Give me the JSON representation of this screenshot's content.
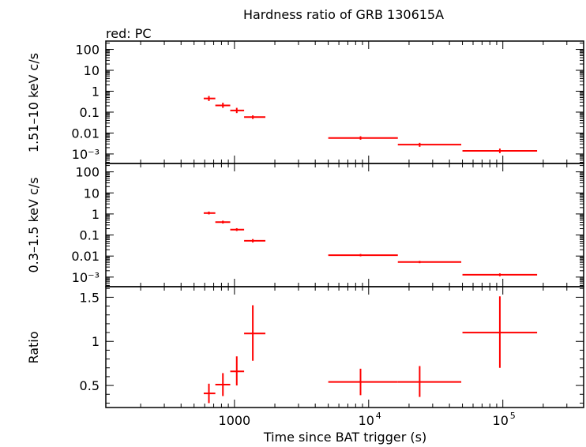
{
  "title": "Hardness ratio of GRB 130615A",
  "subtitle": "red: PC",
  "xlabel": "Time since BAT trigger (s)",
  "colors": {
    "data": "#ff0000",
    "axes": "#000000"
  },
  "chart_data": [
    {
      "type": "scatter",
      "name": "hard",
      "ylabel": "1.51–10 keV c/s",
      "x_scale": "log",
      "y_scale": "log",
      "xlim": [
        110,
        400000
      ],
      "ylim": [
        0.00035,
        250
      ],
      "yticks": [
        {
          "v": 100,
          "label": "100"
        },
        {
          "v": 10,
          "label": "10"
        },
        {
          "v": 1,
          "label": "1"
        },
        {
          "v": 0.1,
          "label": "0.1"
        },
        {
          "v": 0.01,
          "label": "0.01"
        },
        {
          "v": 0.001,
          "label": "10⁻³"
        }
      ],
      "points": [
        {
          "x": 645,
          "xlo": 590,
          "xhi": 720,
          "y": 0.45,
          "ylo": 0.34,
          "yhi": 0.59
        },
        {
          "x": 820,
          "xlo": 720,
          "xhi": 930,
          "y": 0.21,
          "ylo": 0.16,
          "yhi": 0.28
        },
        {
          "x": 1040,
          "xlo": 930,
          "xhi": 1180,
          "y": 0.12,
          "ylo": 0.09,
          "yhi": 0.16
        },
        {
          "x": 1370,
          "xlo": 1180,
          "xhi": 1700,
          "y": 0.058,
          "ylo": 0.047,
          "yhi": 0.07
        },
        {
          "x": 8700,
          "xlo": 5000,
          "xhi": 16500,
          "y": 0.0058,
          "ylo": 0.0048,
          "yhi": 0.007
        },
        {
          "x": 24000,
          "xlo": 16500,
          "xhi": 49000,
          "y": 0.0028,
          "ylo": 0.0022,
          "yhi": 0.0034
        },
        {
          "x": 95000,
          "xlo": 50000,
          "xhi": 180000,
          "y": 0.0014,
          "ylo": 0.0011,
          "yhi": 0.0018
        }
      ]
    },
    {
      "type": "scatter",
      "name": "soft",
      "ylabel": "0.3–1.5 keV c/s",
      "x_scale": "log",
      "y_scale": "log",
      "xlim": [
        110,
        400000
      ],
      "ylim": [
        0.00035,
        250
      ],
      "yticks": [
        {
          "v": 100,
          "label": "100"
        },
        {
          "v": 10,
          "label": "10"
        },
        {
          "v": 1,
          "label": "1"
        },
        {
          "v": 0.1,
          "label": "0.1"
        },
        {
          "v": 0.01,
          "label": "0.01"
        },
        {
          "v": 0.001,
          "label": "10⁻³"
        }
      ],
      "points": [
        {
          "x": 645,
          "xlo": 590,
          "xhi": 720,
          "y": 1.1,
          "ylo": 0.95,
          "yhi": 1.3
        },
        {
          "x": 820,
          "xlo": 720,
          "xhi": 930,
          "y": 0.41,
          "ylo": 0.35,
          "yhi": 0.48
        },
        {
          "x": 1040,
          "xlo": 930,
          "xhi": 1180,
          "y": 0.18,
          "ylo": 0.155,
          "yhi": 0.21
        },
        {
          "x": 1370,
          "xlo": 1180,
          "xhi": 1700,
          "y": 0.053,
          "ylo": 0.044,
          "yhi": 0.064
        },
        {
          "x": 8700,
          "xlo": 5000,
          "xhi": 16500,
          "y": 0.011,
          "ylo": 0.0097,
          "yhi": 0.0125
        },
        {
          "x": 24000,
          "xlo": 16500,
          "xhi": 49000,
          "y": 0.0052,
          "ylo": 0.0046,
          "yhi": 0.0059
        },
        {
          "x": 95000,
          "xlo": 50000,
          "xhi": 180000,
          "y": 0.0013,
          "ylo": 0.0011,
          "yhi": 0.0015
        }
      ]
    },
    {
      "type": "scatter",
      "name": "ratio",
      "ylabel": "Ratio",
      "x_scale": "log",
      "y_scale": "linear",
      "xlim": [
        110,
        400000
      ],
      "ylim": [
        0.25,
        1.62
      ],
      "yticks": [
        {
          "v": 1.5,
          "label": "1.5"
        },
        {
          "v": 1,
          "label": "1"
        },
        {
          "v": 0.5,
          "label": "0.5"
        }
      ],
      "points": [
        {
          "x": 645,
          "xlo": 590,
          "xhi": 720,
          "y": 0.41,
          "ylo": 0.3,
          "yhi": 0.52
        },
        {
          "x": 820,
          "xlo": 720,
          "xhi": 930,
          "y": 0.51,
          "ylo": 0.38,
          "yhi": 0.64
        },
        {
          "x": 1040,
          "xlo": 930,
          "xhi": 1180,
          "y": 0.66,
          "ylo": 0.5,
          "yhi": 0.83
        },
        {
          "x": 1370,
          "xlo": 1180,
          "xhi": 1700,
          "y": 1.09,
          "ylo": 0.78,
          "yhi": 1.41
        },
        {
          "x": 8700,
          "xlo": 5000,
          "xhi": 16500,
          "y": 0.54,
          "ylo": 0.39,
          "yhi": 0.69
        },
        {
          "x": 24000,
          "xlo": 16500,
          "xhi": 49000,
          "y": 0.54,
          "ylo": 0.37,
          "yhi": 0.72
        },
        {
          "x": 95000,
          "xlo": 50000,
          "xhi": 180000,
          "y": 1.1,
          "ylo": 0.7,
          "yhi": 1.51
        }
      ]
    }
  ],
  "xticks": [
    {
      "v": 1000,
      "label": "1000"
    },
    {
      "v": 10000,
      "base": "10",
      "exp": "4"
    },
    {
      "v": 100000,
      "base": "10",
      "exp": "5"
    }
  ]
}
